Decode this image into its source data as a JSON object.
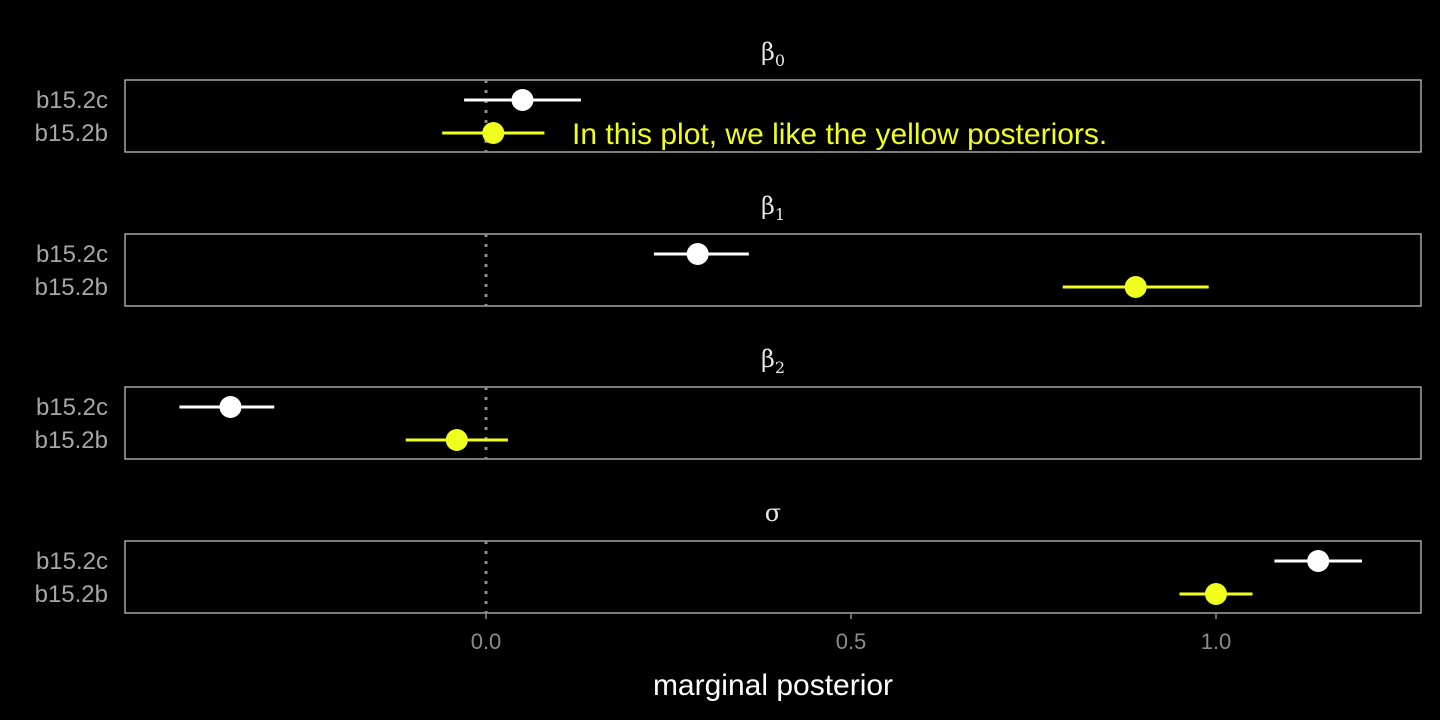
{
  "chart_data": {
    "type": "scatter",
    "title": "",
    "xlabel": "marginal posterior",
    "xlim": [
      -0.5,
      1.3
    ],
    "x_ticks": [
      "0.0",
      "0.5",
      "1.0"
    ],
    "x_tick_values": [
      0.0,
      0.5,
      1.0
    ],
    "reference_line": 0,
    "colors": {
      "b15.2c": "#ffffff",
      "b15.2b": "#f0ff1e",
      "background": "#000000",
      "panel_border": "#bfbfbf"
    },
    "panels": [
      {
        "parameter": "β0",
        "symbol": "β",
        "subscript": "0",
        "points": [
          {
            "model": "b15.2c",
            "estimate": 0.05,
            "lower": -0.03,
            "upper": 0.13
          },
          {
            "model": "b15.2b",
            "estimate": 0.01,
            "lower": -0.06,
            "upper": 0.08
          }
        ]
      },
      {
        "parameter": "β1",
        "symbol": "β",
        "subscript": "1",
        "points": [
          {
            "model": "b15.2c",
            "estimate": 0.29,
            "lower": 0.23,
            "upper": 0.36
          },
          {
            "model": "b15.2b",
            "estimate": 0.89,
            "lower": 0.79,
            "upper": 0.99
          }
        ]
      },
      {
        "parameter": "β2",
        "symbol": "β",
        "subscript": "2",
        "points": [
          {
            "model": "b15.2c",
            "estimate": -0.35,
            "lower": -0.42,
            "upper": -0.29
          },
          {
            "model": "b15.2b",
            "estimate": -0.04,
            "lower": -0.11,
            "upper": 0.03
          }
        ]
      },
      {
        "parameter": "σ",
        "symbol": "σ",
        "subscript": "",
        "points": [
          {
            "model": "b15.2c",
            "estimate": 1.14,
            "lower": 1.08,
            "upper": 1.2
          },
          {
            "model": "b15.2b",
            "estimate": 1.0,
            "lower": 0.95,
            "upper": 1.05
          }
        ]
      }
    ],
    "annotation": {
      "text": "In this plot, we like the yellow posteriors.",
      "panel": 0,
      "color": "#f0ff1e"
    }
  }
}
